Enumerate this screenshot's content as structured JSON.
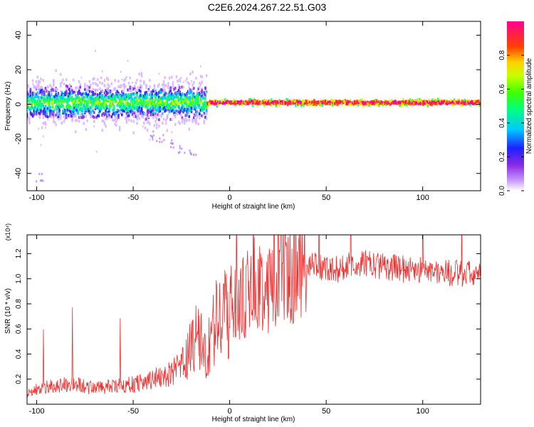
{
  "title": "C2E6.2024.267.22.51.G03",
  "chart_data": [
    {
      "type": "heatmap",
      "xlabel": "Height of straight line (km)",
      "ylabel": "Frequency (Hz)",
      "xlim": [
        -105,
        130
      ],
      "ylim": [
        -50,
        48
      ],
      "xticks": [
        -100,
        -50,
        0,
        50,
        100
      ],
      "yticks": [
        -40,
        -20,
        0,
        20,
        40
      ],
      "colorbar": {
        "label": "Normalized spectral amplitude",
        "range": [
          0,
          1
        ],
        "ticks": [
          0.0,
          0.2,
          0.4,
          0.6,
          0.8
        ],
        "tick_labels": [
          "0.0",
          "0.2",
          "0.4",
          "0.6",
          "0.8"
        ]
      },
      "description_values": {
        "ridge_center_hz": 1,
        "noisy_region_km": [
          -105,
          -12
        ],
        "noisy_halfwidth_hz": 6,
        "tight_region_km": [
          -12,
          130
        ],
        "tight_halfwidth_hz": 1.5,
        "tail_points": [
          {
            "x": -40,
            "y": -18
          },
          {
            "x": -35,
            "y": -20
          },
          {
            "x": -30,
            "y": -23
          },
          {
            "x": -25,
            "y": -26
          },
          {
            "x": -20,
            "y": -28
          },
          {
            "x": -98,
            "y": -43
          }
        ]
      },
      "colors": [
        "#ffffff",
        "#9b30ff",
        "#0000ff",
        "#00ffff",
        "#00ff00",
        "#ffff00",
        "#ff0000",
        "#ff0088"
      ]
    },
    {
      "type": "line",
      "xlabel": "Height of straight line (km)",
      "ylabel": "SNR (10 * v/v)",
      "y_multiplier": "(x10⁴)",
      "xlim": [
        -105,
        130
      ],
      "ylim": [
        0,
        1.35
      ],
      "xticks": [
        -100,
        -50,
        0,
        50,
        100
      ],
      "yticks": [
        0.2,
        0.4,
        0.6,
        0.8,
        1.0,
        1.2
      ],
      "ytick_labels": [
        "0.2",
        "0.4",
        "0.6",
        "0.8",
        "1.0",
        "1.2"
      ],
      "color": "#ee3030",
      "series": [
        {
          "x": [
            -105,
            -100,
            -90,
            -80,
            -70,
            -60,
            -50,
            -40,
            -30,
            -25,
            -20,
            -17,
            -15,
            -12,
            -10,
            -7,
            -5,
            -2,
            0,
            5,
            10,
            15,
            20,
            25,
            30,
            35,
            40,
            45,
            50,
            55,
            60,
            65,
            70,
            80,
            90,
            100,
            110,
            120,
            130
          ],
          "values": [
            0.08,
            0.12,
            0.15,
            0.16,
            0.13,
            0.14,
            0.16,
            0.2,
            0.25,
            0.3,
            0.45,
            0.55,
            0.5,
            0.35,
            0.52,
            0.65,
            0.7,
            0.72,
            0.78,
            0.82,
            0.87,
            0.92,
            0.97,
            1.03,
            1.07,
            1.1,
            1.1,
            1.1,
            1.09,
            1.07,
            1.1,
            1.11,
            1.12,
            1.1,
            1.08,
            1.07,
            1.05,
            1.04,
            1.03
          ]
        }
      ]
    }
  ]
}
